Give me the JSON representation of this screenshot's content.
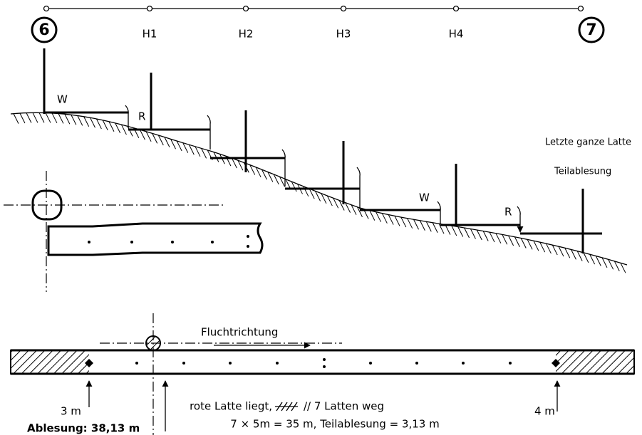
{
  "stations": {
    "start": "6",
    "end": "7",
    "intermediate": [
      "H1",
      "H2",
      "H3",
      "H4"
    ]
  },
  "profile": {
    "labels": [
      "W",
      "R",
      "W",
      "R"
    ],
    "notes": [
      "Letzte ganze Latte",
      "Teilablesung"
    ]
  },
  "tape": {
    "direction": "Fluchtrichtung",
    "left_mark": "3 m",
    "right_mark": "4 m",
    "reading": "Ablesung: 38,13 m",
    "line1_start": "rote Latte liegt,",
    "line1_end": "//  7 Latten weg",
    "line2": "7 × 5m = 35 m, Teilablesung = 3,13 m"
  }
}
